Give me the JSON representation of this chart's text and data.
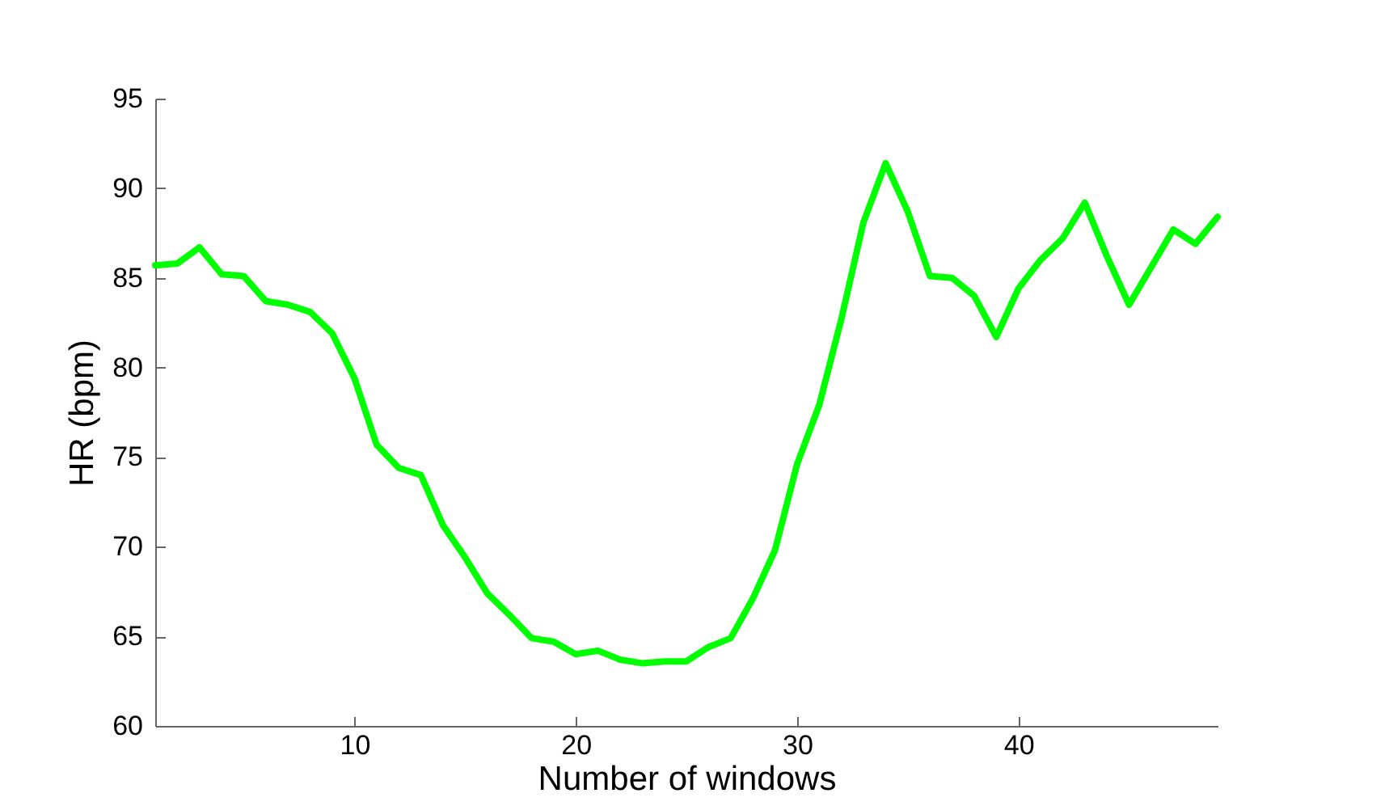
{
  "chart_data": {
    "type": "line",
    "xlabel": "Number of windows",
    "ylabel": "HR (bpm)",
    "x": [
      1,
      2,
      3,
      4,
      5,
      6,
      7,
      8,
      9,
      10,
      11,
      12,
      13,
      14,
      15,
      16,
      17,
      18,
      19,
      20,
      21,
      22,
      23,
      24,
      25,
      26,
      27,
      28,
      29,
      30,
      31,
      32,
      33,
      34,
      35,
      36,
      37,
      38,
      39,
      40,
      41,
      42,
      43,
      44,
      45,
      46,
      47,
      48,
      49
    ],
    "series": [
      {
        "color": "#00ff00",
        "values": [
          85.7,
          85.8,
          86.7,
          85.2,
          85.1,
          83.7,
          83.5,
          83.1,
          81.9,
          79.4,
          75.7,
          74.4,
          74.0,
          71.2,
          69.4,
          67.4,
          66.2,
          64.9,
          64.7,
          64.0,
          64.2,
          63.7,
          63.5,
          63.6,
          63.6,
          64.4,
          64.9,
          67.1,
          69.8,
          74.6,
          77.9,
          82.7,
          88.1,
          91.4,
          88.7,
          85.1,
          85.0,
          84.0,
          81.7,
          84.4,
          86.0,
          87.2,
          89.2,
          86.2,
          83.5,
          85.6,
          87.7,
          86.9,
          88.4
        ]
      }
    ],
    "xlim": [
      1,
      49
    ],
    "xticks": [
      10,
      20,
      30,
      40
    ],
    "ylim": [
      60,
      95
    ],
    "yticks": [
      60,
      65,
      70,
      75,
      80,
      85,
      90,
      95
    ],
    "grid": false,
    "marker": "none",
    "line_style": "solid"
  }
}
